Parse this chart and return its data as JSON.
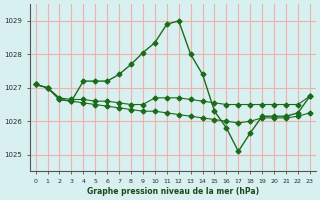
{
  "xlabel": "Graphe pression niveau de la mer (hPa)",
  "background_color": "#d8f0f0",
  "grid_color": "#f0b0b0",
  "line_color": "#1a6b1a",
  "ylim": [
    1024.5,
    1029.5
  ],
  "xlim": [
    -0.5,
    23.5
  ],
  "yticks": [
    1025,
    1026,
    1027,
    1028,
    1029
  ],
  "xticks": [
    0,
    1,
    2,
    3,
    4,
    5,
    6,
    7,
    8,
    9,
    10,
    11,
    12,
    13,
    14,
    15,
    16,
    17,
    18,
    19,
    20,
    21,
    22,
    23
  ],
  "line1": [
    1027.1,
    1027.0,
    1026.65,
    1026.6,
    1027.2,
    1027.2,
    1027.2,
    1027.4,
    1027.7,
    1028.05,
    1028.35,
    1028.9,
    1029.0,
    1028.0,
    1027.4,
    1026.3,
    1025.8,
    1025.1,
    1025.65,
    1026.15,
    1026.15,
    1026.15,
    1026.25,
    1026.75
  ],
  "line2": [
    1027.1,
    1027.0,
    1026.7,
    1026.65,
    1026.65,
    1026.6,
    1026.6,
    1026.55,
    1026.5,
    1026.5,
    1026.7,
    1026.7,
    1026.7,
    1026.65,
    1026.6,
    1026.55,
    1026.5,
    1026.5,
    1026.5,
    1026.5,
    1026.5,
    1026.5,
    1026.5,
    1026.75
  ],
  "line3": [
    1027.1,
    1027.0,
    1026.65,
    1026.6,
    1026.55,
    1026.5,
    1026.45,
    1026.4,
    1026.35,
    1026.3,
    1026.3,
    1026.25,
    1026.2,
    1026.15,
    1026.1,
    1026.05,
    1026.0,
    1025.95,
    1026.0,
    1026.1,
    1026.1,
    1026.1,
    1026.15,
    1026.25
  ]
}
